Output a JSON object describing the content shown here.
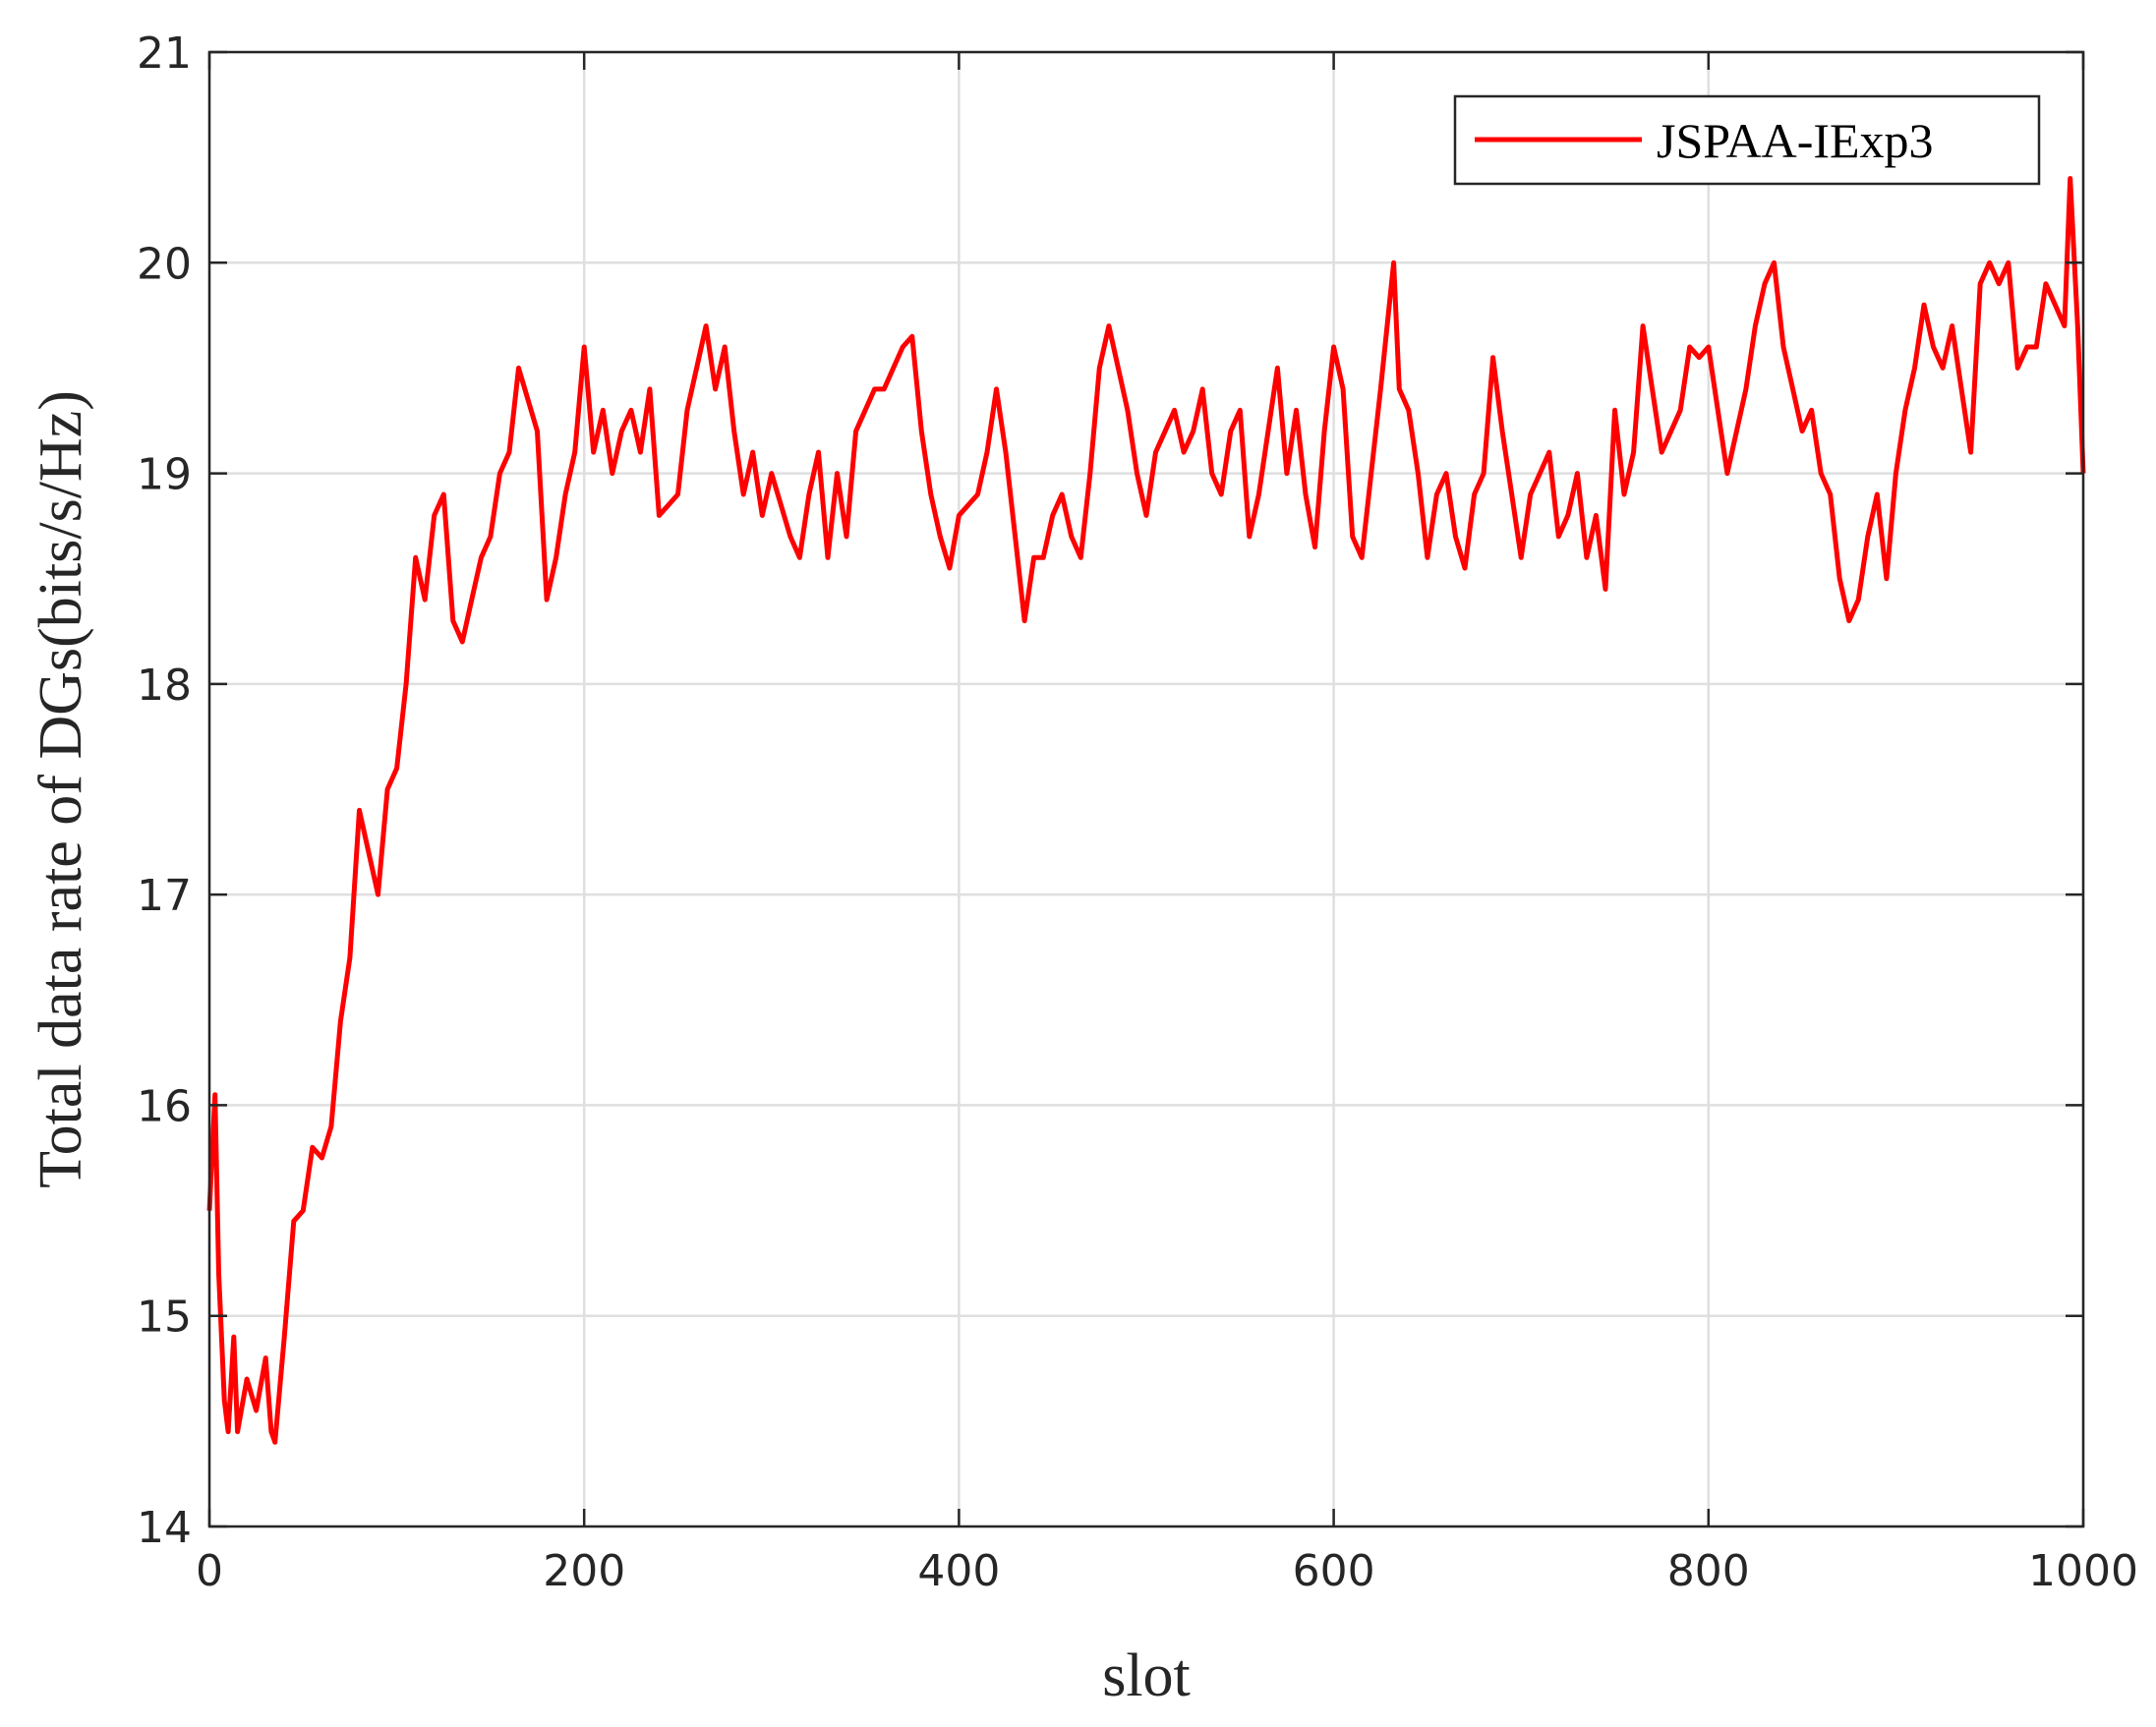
{
  "chart_data": {
    "type": "line",
    "xlabel": "slot",
    "ylabel": "Total data rate of DGs(bits/s/Hz)",
    "xlim": [
      0,
      1000
    ],
    "ylim": [
      14,
      21
    ],
    "xticks": [
      0,
      200,
      400,
      600,
      800,
      1000
    ],
    "yticks": [
      14,
      15,
      16,
      17,
      18,
      19,
      20,
      21
    ],
    "grid": true,
    "legend": "upper right",
    "series": [
      {
        "name": "JSPAA-IExp3",
        "color": "#ff0000",
        "x": [
          0,
          3,
          5,
          8,
          10,
          13,
          15,
          20,
          25,
          30,
          33,
          35,
          40,
          45,
          50,
          55,
          60,
          65,
          70,
          75,
          80,
          85,
          90,
          95,
          100,
          105,
          110,
          115,
          120,
          125,
          130,
          135,
          140,
          145,
          150,
          155,
          160,
          165,
          170,
          175,
          180,
          185,
          190,
          195,
          200,
          205,
          210,
          215,
          220,
          225,
          230,
          235,
          240,
          245,
          250,
          255,
          260,
          265,
          270,
          275,
          280,
          285,
          290,
          295,
          300,
          310,
          315,
          320,
          325,
          330,
          335,
          340,
          345,
          350,
          355,
          360,
          365,
          370,
          375,
          380,
          385,
          390,
          395,
          400,
          410,
          415,
          420,
          425,
          430,
          435,
          440,
          445,
          450,
          455,
          460,
          465,
          470,
          475,
          480,
          485,
          490,
          495,
          500,
          505,
          510,
          515,
          520,
          525,
          530,
          535,
          540,
          545,
          550,
          555,
          560,
          565,
          570,
          575,
          580,
          585,
          590,
          595,
          600,
          605,
          610,
          615,
          620,
          625,
          632,
          635,
          640,
          645,
          650,
          655,
          660,
          665,
          670,
          675,
          680,
          685,
          690,
          695,
          700,
          705,
          710,
          715,
          720,
          725,
          730,
          735,
          740,
          745,
          750,
          755,
          760,
          765,
          770,
          775,
          780,
          785,
          790,
          795,
          800,
          805,
          810,
          815,
          820,
          825,
          830,
          835,
          840,
          845,
          850,
          855,
          860,
          865,
          870,
          875,
          880,
          885,
          890,
          895,
          900,
          905,
          910,
          915,
          920,
          925,
          930,
          935,
          940,
          945,
          950,
          955,
          960,
          965,
          970,
          975,
          980,
          985,
          990,
          993,
          997,
          1000
        ],
        "values": [
          15.5,
          16.05,
          15.2,
          14.6,
          14.45,
          14.9,
          14.45,
          14.7,
          14.55,
          14.8,
          14.45,
          14.4,
          14.9,
          15.45,
          15.5,
          15.8,
          15.75,
          15.9,
          16.4,
          16.7,
          17.4,
          17.2,
          17.0,
          17.5,
          17.6,
          18.0,
          18.6,
          18.4,
          18.8,
          18.9,
          18.3,
          18.2,
          18.4,
          18.6,
          18.7,
          19.0,
          19.1,
          19.5,
          19.35,
          19.2,
          18.4,
          18.6,
          18.9,
          19.1,
          19.6,
          19.1,
          19.3,
          19.0,
          19.2,
          19.3,
          19.1,
          19.4,
          18.8,
          18.85,
          18.9,
          19.3,
          19.5,
          19.7,
          19.4,
          19.6,
          19.2,
          18.9,
          19.1,
          18.8,
          19.0,
          18.7,
          18.6,
          18.9,
          19.1,
          18.6,
          19.0,
          18.7,
          19.2,
          19.3,
          19.4,
          19.4,
          19.5,
          19.6,
          19.65,
          19.2,
          18.9,
          18.7,
          18.55,
          18.8,
          18.9,
          19.1,
          19.4,
          19.1,
          18.7,
          18.3,
          18.6,
          18.6,
          18.8,
          18.9,
          18.7,
          18.6,
          19.0,
          19.5,
          19.7,
          19.5,
          19.3,
          19.0,
          18.8,
          19.1,
          19.2,
          19.3,
          19.1,
          19.2,
          19.4,
          19.0,
          18.9,
          19.2,
          19.3,
          18.7,
          18.9,
          19.2,
          19.5,
          19.0,
          19.3,
          18.9,
          18.65,
          19.2,
          19.6,
          19.4,
          18.7,
          18.6,
          19.0,
          19.4,
          20.0,
          19.4,
          19.3,
          19.0,
          18.6,
          18.9,
          19.0,
          18.7,
          18.55,
          18.9,
          19.0,
          19.55,
          19.2,
          18.9,
          18.6,
          18.9,
          19.0,
          19.1,
          18.7,
          18.8,
          19.0,
          18.6,
          18.8,
          18.45,
          19.3,
          18.9,
          19.1,
          19.7,
          19.4,
          19.1,
          19.2,
          19.3,
          19.6,
          19.55,
          19.6,
          19.3,
          19.0,
          19.2,
          19.4,
          19.7,
          19.9,
          20.0,
          19.6,
          19.4,
          19.2,
          19.3,
          19.0,
          18.9,
          18.5,
          18.3,
          18.4,
          18.7,
          18.9,
          18.5,
          19.0,
          19.3,
          19.5,
          19.8,
          19.6,
          19.5,
          19.7,
          19.4,
          19.1,
          19.9,
          20.0,
          19.9,
          20.0,
          19.5,
          19.6,
          19.6,
          19.9,
          19.8,
          19.7,
          20.4,
          19.7,
          19.0
        ]
      }
    ]
  }
}
